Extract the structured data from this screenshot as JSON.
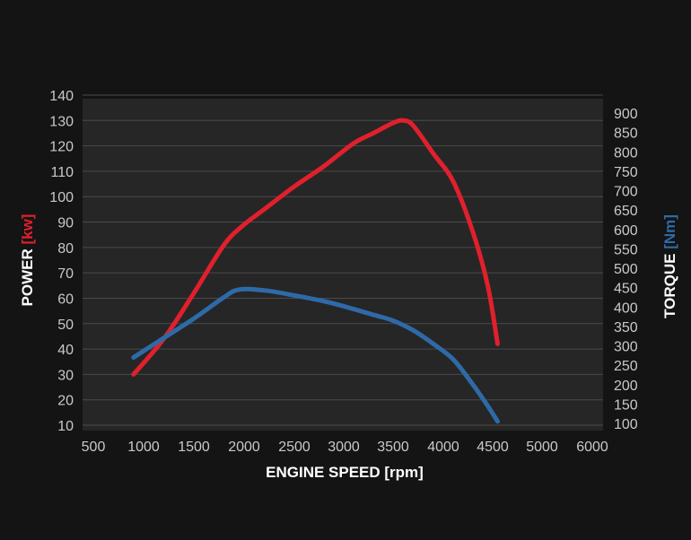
{
  "colors": {
    "background": "#141414",
    "plot_background": "#262626",
    "grid": "#4a4a4a",
    "power": "#e0202c",
    "torque": "#2e6aa8",
    "text": "#c9c9c9",
    "axis_title": "#ffffff"
  },
  "labels": {
    "xlabel": "ENGINE SPEED [rpm]",
    "y_left_main": "POWER ",
    "y_left_unit": "[kw]",
    "y_right_main": "TORQUE ",
    "y_right_unit": "[Nm]"
  },
  "chart_data": {
    "type": "line",
    "title": "",
    "xlabel": "ENGINE SPEED [rpm]",
    "ylabel_left": "POWER [kw]",
    "ylabel_right": "TORQUE [Nm]",
    "xlim": [
      500,
      6000
    ],
    "ylim_left": [
      10,
      140
    ],
    "ylim_right": [
      100,
      900
    ],
    "x_ticks": [
      "500",
      "1000",
      "1500",
      "2000",
      "2500",
      "3000",
      "3500",
      "4000",
      "4500",
      "5000",
      "6000"
    ],
    "y_left_ticks": [
      "10",
      "20",
      "30",
      "40",
      "50",
      "60",
      "70",
      "80",
      "90",
      "100",
      "110",
      "120",
      "130",
      "140"
    ],
    "y_right_ticks": [
      "100",
      "150",
      "200",
      "250",
      "300",
      "350",
      "400",
      "450",
      "500",
      "550",
      "600",
      "650",
      "700",
      "750",
      "800",
      "850",
      "900"
    ],
    "grid": true,
    "series": [
      {
        "name": "POWER",
        "axis": "left",
        "x": [
          900,
          1200,
          1500,
          1800,
          2000,
          2200,
          2500,
          2800,
          3100,
          3300,
          3500,
          3600,
          3700,
          3900,
          4100,
          4300,
          4450,
          4550
        ],
        "y": [
          30,
          44,
          62,
          81,
          89,
          95,
          104,
          112,
          121,
          125,
          129,
          130,
          128,
          117,
          106,
          86,
          65,
          42
        ]
      },
      {
        "name": "TORQUE",
        "axis": "right",
        "x": [
          900,
          1200,
          1500,
          1800,
          1950,
          2200,
          2500,
          2800,
          3000,
          3300,
          3500,
          3700,
          3900,
          4100,
          4300,
          4450,
          4550
        ],
        "y": [
          270,
          320,
          370,
          425,
          445,
          443,
          430,
          415,
          402,
          380,
          365,
          340,
          305,
          265,
          200,
          145,
          105
        ]
      }
    ]
  }
}
